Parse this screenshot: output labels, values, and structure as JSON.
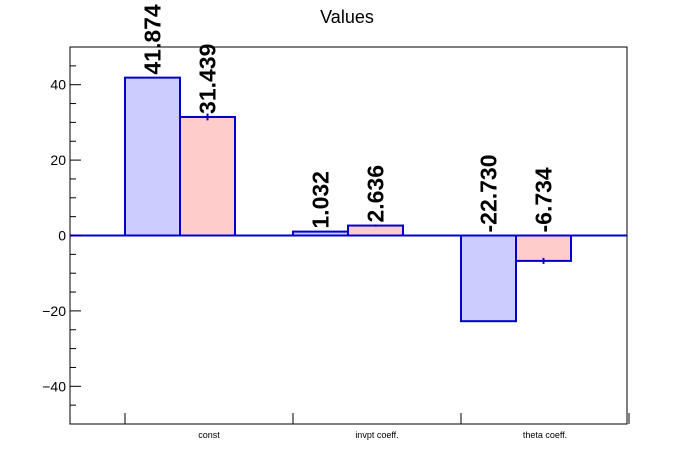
{
  "chart_data": {
    "type": "bar",
    "title": "Values",
    "xlabel": "",
    "ylabel": "",
    "categories": [
      "const",
      "invpt coeff.",
      "theta coeff."
    ],
    "series": [
      {
        "values": [
          41.874,
          1.032,
          -22.73
        ],
        "labels": [
          "41.874",
          "1.032",
          "-22.730"
        ],
        "color": "#ccccff",
        "edge": "#0000cc"
      },
      {
        "values": [
          31.439,
          2.636,
          -6.734
        ],
        "labels": [
          "31.439",
          "2.636",
          "-6.734"
        ],
        "errors": [
          0.9,
          0.3,
          0.8
        ],
        "color": "#ffcccc",
        "edge": "#0000cc"
      }
    ],
    "ylim": [
      -50,
      50
    ],
    "yticks": [
      -40,
      -20,
      0,
      20,
      40
    ],
    "ytick_labels": [
      "−40",
      "−20",
      "0",
      "20",
      "40"
    ],
    "grid": false,
    "legend": "none"
  }
}
